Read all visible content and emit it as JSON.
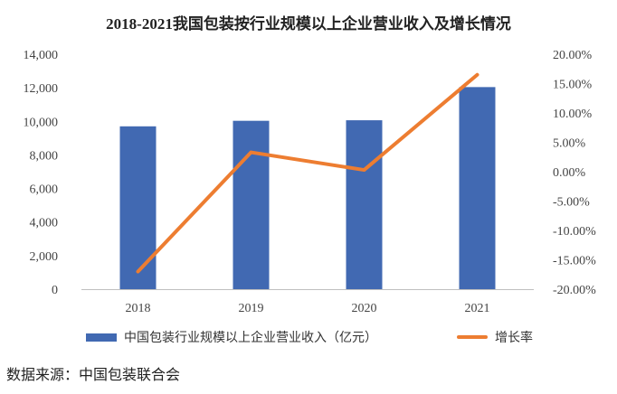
{
  "chart_data": {
    "type": "bar",
    "title": "2018-2021我国包装按行业规模以上企业营业收入及增长情况",
    "categories": [
      "2018",
      "2019",
      "2020",
      "2021"
    ],
    "series": [
      {
        "name": "中国包装行业规模以上企业营业收入（亿元）",
        "type": "bar",
        "axis": "left",
        "color": "#4169b2",
        "values": [
          9703,
          10033,
          10065,
          12042
        ]
      },
      {
        "name": "增长率",
        "type": "line",
        "axis": "right",
        "color": "#ed7d31",
        "values": [
          -17.0,
          3.3,
          0.3,
          16.5
        ]
      }
    ],
    "y_left": {
      "range": [
        0,
        14000
      ],
      "ticks": [
        0,
        2000,
        4000,
        6000,
        8000,
        10000,
        12000,
        14000
      ],
      "tick_labels": [
        "0",
        "2,000",
        "4,000",
        "6,000",
        "8,000",
        "10,000",
        "12,000",
        "14,000"
      ]
    },
    "y_right": {
      "range": [
        -20,
        20
      ],
      "ticks": [
        -20,
        -15,
        -10,
        -5,
        0,
        5,
        10,
        15,
        20
      ],
      "tick_labels": [
        "-20.00%",
        "-15.00%",
        "-10.00%",
        "-5.00%",
        "0.00%",
        "5.00%",
        "10.00%",
        "15.00%",
        "20.00%"
      ]
    },
    "legend_position": "bottom"
  },
  "source": "数据来源：中国包装联合会"
}
